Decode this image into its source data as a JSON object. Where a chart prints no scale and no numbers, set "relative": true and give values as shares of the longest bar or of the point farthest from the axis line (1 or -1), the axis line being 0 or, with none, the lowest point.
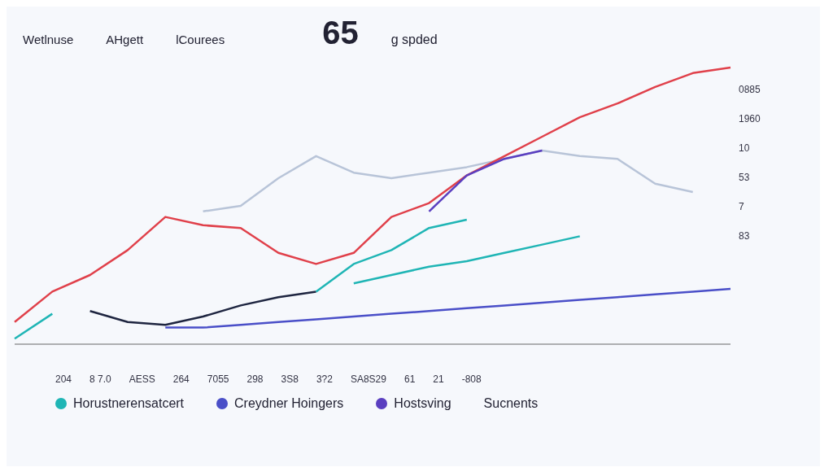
{
  "chart_data": {
    "type": "line",
    "relative": true,
    "title": "65",
    "subtitle": "g spded",
    "categories": [
      null,
      null,
      null,
      null,
      null,
      null,
      null,
      null,
      null,
      null,
      null,
      null,
      null,
      null,
      null,
      null,
      null,
      null,
      null,
      null
    ],
    "series": [
      {
        "color": "#b8c4d8",
        "values": [
          null,
          null,
          null,
          null,
          null,
          0.48,
          0.5,
          0.6,
          0.68,
          0.62,
          0.6,
          0.62,
          0.64,
          0.67,
          0.7,
          0.68,
          0.67,
          0.58,
          0.55,
          null
        ]
      },
      {
        "color": "#e0404a",
        "values": [
          0.08,
          0.19,
          0.25,
          0.34,
          0.46,
          0.43,
          0.42,
          0.33,
          0.29,
          0.33,
          0.46,
          0.51,
          0.61,
          0.68,
          0.75,
          0.82,
          0.87,
          0.93,
          0.98,
          1
        ]
      },
      {
        "color": "#1e2540",
        "values": [
          null,
          null,
          0.12,
          0.08,
          0.07,
          0.1,
          0.14,
          0.17,
          0.19,
          null,
          null,
          null,
          null,
          null,
          null,
          null,
          null,
          null,
          null,
          null
        ]
      },
      {
        "name": "Horustnerensatcert",
        "color": "#1fb5b5",
        "values": [
          0.02,
          0.11,
          null,
          null,
          null,
          null,
          null,
          null,
          0.19,
          0.29,
          0.34,
          0.42,
          0.45,
          null,
          null,
          null,
          null,
          null,
          null,
          null
        ]
      },
      {
        "color": "#1fb5b5",
        "values": [
          null,
          null,
          null,
          null,
          null,
          null,
          null,
          null,
          null,
          0.22,
          0.25,
          0.28,
          0.3,
          0.33,
          0.36,
          0.39,
          null,
          null,
          null,
          null
        ]
      },
      {
        "name": "Creydner Hoingers",
        "color": "#4a4fc8",
        "values": [
          null,
          null,
          null,
          null,
          0.06,
          0.06,
          0.07,
          0.08,
          0.09,
          0.1,
          0.11,
          0.12,
          0.13,
          0.14,
          0.15,
          0.16,
          0.17,
          0.18,
          0.19,
          0.2
        ]
      },
      {
        "name": "Hostsving",
        "color": "#5a3fc0",
        "values": [
          null,
          null,
          null,
          null,
          null,
          null,
          null,
          null,
          null,
          null,
          null,
          0.48,
          0.61,
          0.67,
          0.7,
          null,
          null,
          null,
          null,
          null
        ]
      }
    ],
    "annotations": [
      "Wetlnuse",
      "AHgett",
      "lCourees",
      "Sucnents",
      "204",
      "8 7.0",
      "AESS",
      "264",
      "7055",
      "298",
      "3S8",
      "3?2",
      "SA8S29",
      "61",
      "21",
      "-808",
      "0885",
      "1960",
      "10",
      "53",
      "7",
      "83"
    ],
    "legend": "bottom"
  }
}
